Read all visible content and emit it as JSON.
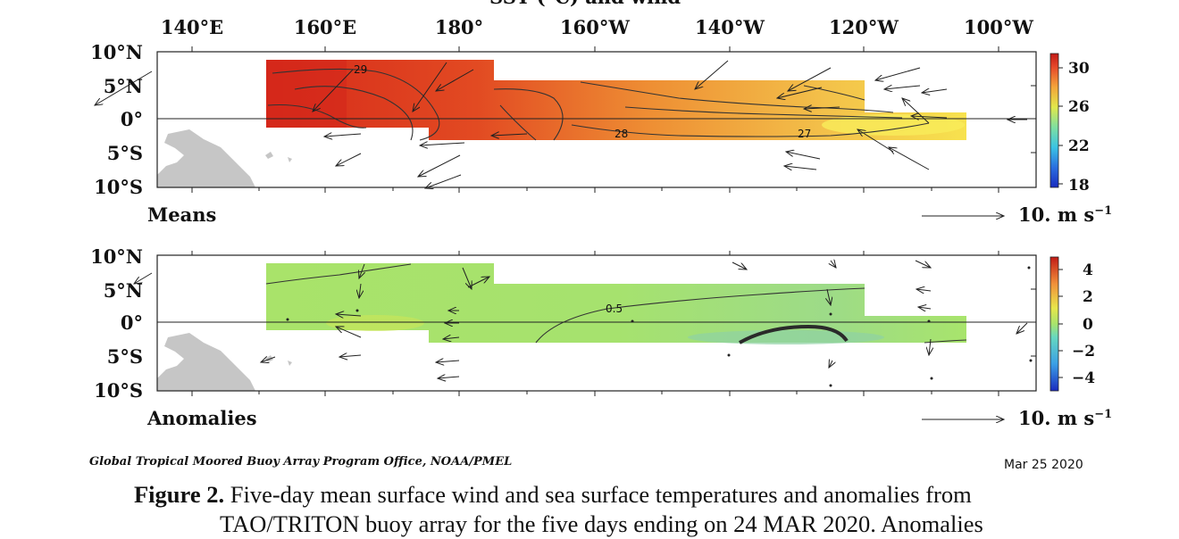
{
  "figure": {
    "top_title": "SST (°C) and wind",
    "lon_ticks": [
      "140°E",
      "160°E",
      "180°",
      "160°W",
      "140°W",
      "120°W",
      "100°W"
    ],
    "lat_ticks": [
      "10°N",
      "5°N",
      "0°",
      "5°S",
      "10°S"
    ],
    "panels": [
      {
        "label": "Means",
        "colorbar_ticks": [
          "30",
          "26",
          "22",
          "18"
        ],
        "contour_labels": [
          "29",
          "28",
          "27"
        ],
        "ref_vector": "10. m s",
        "ref_vector_exp": "−1"
      },
      {
        "label": "Anomalies",
        "colorbar_ticks": [
          "4",
          "2",
          "0",
          "−2",
          "−4"
        ],
        "contour_labels": [
          "0.5"
        ],
        "ref_vector": "10. m s",
        "ref_vector_exp": "−1"
      }
    ],
    "credit": "Global Tropical Moored Buoy Array Program Office, NOAA/PMEL",
    "date": "Mar 25 2020"
  },
  "caption": {
    "lead": "Figure 2.",
    "text": " Five-day mean surface wind and sea surface temperatures and anomalies from",
    "line2": "TAO/TRITON buoy array for the five days ending on 24 MAR 2020. Anomalies"
  },
  "colors": {
    "means_scale": [
      "#1a2bbf",
      "#2a8fe0",
      "#43d1c8",
      "#9ee07a",
      "#f0e14a",
      "#f4a23a",
      "#e8502a",
      "#cc1f1a"
    ],
    "anom_scale": [
      "#1a2bbf",
      "#3ab0e8",
      "#8fe27a",
      "#d6ea5a",
      "#f3c83d",
      "#e96b2a",
      "#c81a16"
    ],
    "land": "#c6c6c6"
  }
}
